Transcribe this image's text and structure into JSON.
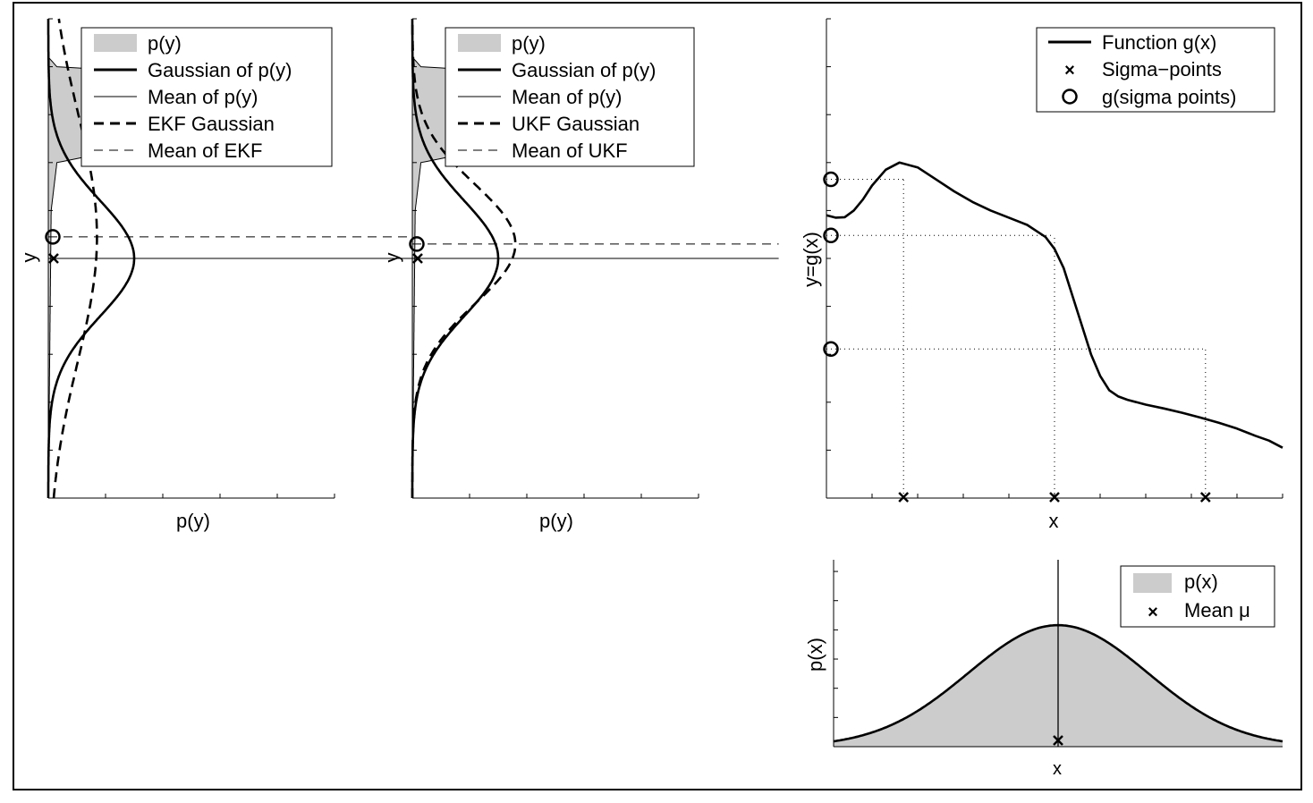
{
  "colors": {
    "fill": "#cccccc",
    "line": "#000000",
    "background": "#ffffff"
  },
  "chart_data": [
    {
      "id": "ekf",
      "type": "area",
      "orientation": "vertical-density",
      "xlabel": "p(y)",
      "ylabel": "y",
      "xlim": [
        0,
        1
      ],
      "ylim": [
        0,
        1
      ],
      "grid": false,
      "legend_position": "top-right",
      "legend": [
        "p(y)",
        "Gaussian of p(y)",
        "Mean of p(y)",
        "EKF Gaussian",
        "Mean of EKF"
      ],
      "series": [
        {
          "name": "p(y)",
          "style": "filled",
          "density_profile": [
            [
              0.0,
              0.0
            ],
            [
              0.6,
              0.01
            ],
            [
              0.7,
              0.03
            ],
            [
              0.72,
              0.2
            ],
            [
              0.73,
              0.5
            ],
            [
              0.74,
              0.75
            ],
            [
              0.745,
              0.95
            ],
            [
              0.75,
              0.7
            ],
            [
              0.78,
              0.32
            ],
            [
              0.79,
              0.3
            ],
            [
              0.8,
              0.4
            ],
            [
              0.82,
              0.44
            ],
            [
              0.835,
              0.45
            ],
            [
              0.86,
              0.48
            ],
            [
              0.87,
              0.55
            ],
            [
              0.88,
              0.98
            ],
            [
              0.885,
              0.85
            ],
            [
              0.89,
              0.3
            ],
            [
              0.9,
              0.03
            ],
            [
              0.92,
              0.0
            ],
            [
              1.0,
              0.0
            ]
          ]
        },
        {
          "name": "Gaussian of p(y)",
          "style": "thick",
          "mean": 0.5,
          "sigma": 0.12,
          "peak": 0.3
        },
        {
          "name": "Mean of p(y)",
          "style": "thin",
          "value": 0.5
        },
        {
          "name": "EKF Gaussian",
          "style": "thick-dashed",
          "mean": 0.545,
          "sigma": 0.26,
          "peak": 0.17
        },
        {
          "name": "Mean of EKF",
          "style": "thin-dashed",
          "value": 0.545
        }
      ],
      "sigma_point": {
        "y": 0.5
      },
      "transformed_mean": {
        "y": 0.545
      }
    },
    {
      "id": "ukf",
      "type": "area",
      "orientation": "vertical-density",
      "xlabel": "p(y)",
      "ylabel": "y",
      "xlim": [
        0,
        1
      ],
      "ylim": [
        0,
        1
      ],
      "grid": false,
      "legend_position": "top-right",
      "legend": [
        "p(y)",
        "Gaussian of p(y)",
        "Mean of p(y)",
        "UKF Gaussian",
        "Mean of UKF"
      ],
      "series": [
        {
          "name": "p(y)",
          "style": "filled",
          "density_profile": [
            [
              0.0,
              0.0
            ],
            [
              0.6,
              0.01
            ],
            [
              0.7,
              0.03
            ],
            [
              0.72,
              0.2
            ],
            [
              0.73,
              0.5
            ],
            [
              0.74,
              0.75
            ],
            [
              0.745,
              0.95
            ],
            [
              0.75,
              0.7
            ],
            [
              0.78,
              0.32
            ],
            [
              0.79,
              0.3
            ],
            [
              0.8,
              0.4
            ],
            [
              0.82,
              0.44
            ],
            [
              0.835,
              0.45
            ],
            [
              0.86,
              0.48
            ],
            [
              0.87,
              0.55
            ],
            [
              0.88,
              0.98
            ],
            [
              0.885,
              0.85
            ],
            [
              0.89,
              0.3
            ],
            [
              0.9,
              0.03
            ],
            [
              0.92,
              0.0
            ],
            [
              1.0,
              0.0
            ]
          ]
        },
        {
          "name": "Gaussian of p(y)",
          "style": "thick",
          "mean": 0.5,
          "sigma": 0.12,
          "peak": 0.3
        },
        {
          "name": "Mean of p(y)",
          "style": "thin",
          "value": 0.5
        },
        {
          "name": "UKF Gaussian",
          "style": "thick-dashed",
          "mean": 0.53,
          "sigma": 0.125,
          "peak": 0.36
        },
        {
          "name": "Mean of UKF",
          "style": "thin-dashed",
          "value": 0.53
        }
      ],
      "sigma_point": {
        "y": 0.5
      },
      "transformed_mean": {
        "y": 0.53
      }
    },
    {
      "id": "function",
      "type": "line",
      "xlabel": "x",
      "ylabel": "y=g(x)",
      "xlim": [
        0,
        1
      ],
      "ylim": [
        0,
        1
      ],
      "grid": false,
      "legend_position": "top-right",
      "legend": [
        "Function g(x)",
        "Sigma−points",
        "g(sigma points)"
      ],
      "series": [
        {
          "name": "Function g(x)",
          "x": [
            0,
            0.02,
            0.04,
            0.06,
            0.08,
            0.1,
            0.13,
            0.16,
            0.2,
            0.24,
            0.28,
            0.32,
            0.36,
            0.4,
            0.44,
            0.48,
            0.5,
            0.52,
            0.54,
            0.56,
            0.58,
            0.6,
            0.62,
            0.64,
            0.66,
            0.7,
            0.74,
            0.78,
            0.82,
            0.86,
            0.9,
            0.94,
            0.97,
            1.0
          ],
          "y": [
            0.59,
            0.585,
            0.586,
            0.6,
            0.623,
            0.652,
            0.685,
            0.7,
            0.69,
            0.665,
            0.64,
            0.618,
            0.6,
            0.585,
            0.57,
            0.545,
            0.52,
            0.48,
            0.42,
            0.36,
            0.3,
            0.255,
            0.225,
            0.212,
            0.205,
            0.195,
            0.187,
            0.178,
            0.168,
            0.157,
            0.145,
            0.13,
            0.12,
            0.105
          ]
        }
      ],
      "sigma_points_x": [
        0.169,
        0.5,
        0.831
      ],
      "sigma_points_gx": [
        0.665,
        0.548,
        0.311
      ]
    },
    {
      "id": "px",
      "type": "area",
      "xlabel": "x",
      "ylabel": "p(x)",
      "xlim": [
        0,
        1
      ],
      "ylim": [
        0,
        1
      ],
      "grid": false,
      "legend_position": "top-right",
      "legend": [
        "p(x)",
        "Mean μ"
      ],
      "series": [
        {
          "name": "p(x)",
          "mean": 0.5,
          "sigma": 0.2,
          "peak": 0.65
        }
      ],
      "mean_mu": 0.5
    }
  ]
}
